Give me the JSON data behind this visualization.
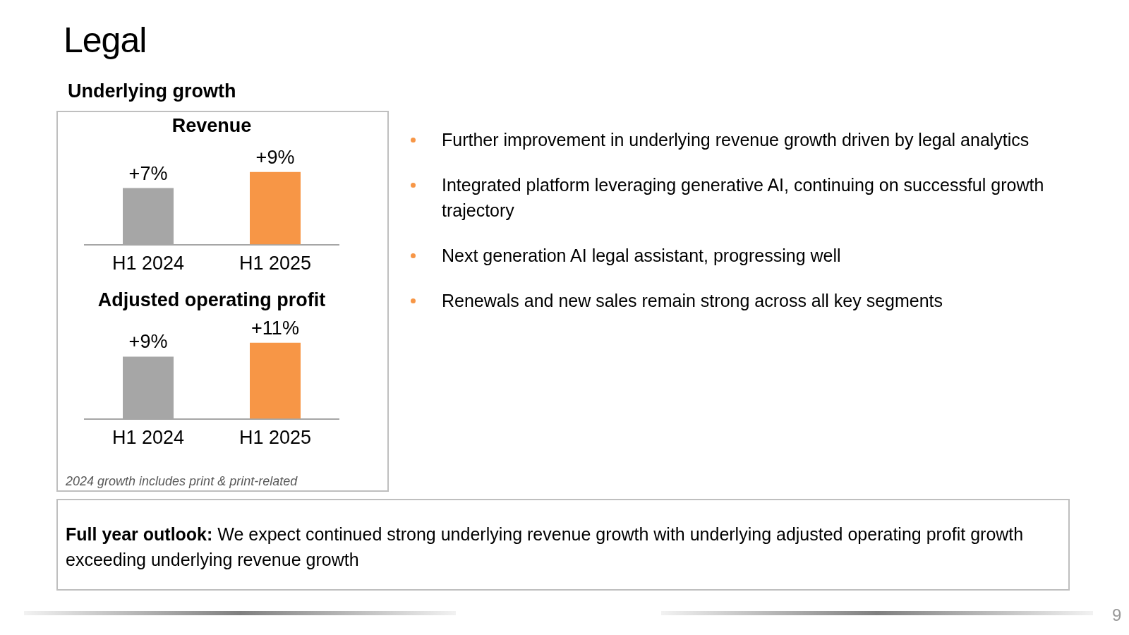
{
  "chart_data": [
    {
      "type": "other",
      "title": "Legal",
      "subtitle": "Underlying growth",
      "annotations": [
        "Further improvement in underlying revenue growth driven by legal analytics",
        "Integrated platform leveraging generative AI, continuing on successful growth trajectory",
        "Next generation AI legal assistant, progressing well",
        "Renewals and new sales remain strong across all key segments",
        "Full year outlook:",
        "We expect continued strong underlying revenue growth with underlying adjusted operating profit growth exceeding underlying revenue growth",
        "9"
      ]
    },
    {
      "type": "bar",
      "title": "Revenue",
      "categories": [
        "H1 2024",
        "H1 2025"
      ],
      "values": [
        7,
        9
      ],
      "value_labels": [
        "+7%",
        "+9%"
      ],
      "colors": [
        "#a6a6a6",
        "#f79646"
      ],
      "tick_labels": "x",
      "grid": false,
      "legend": false
    },
    {
      "type": "bar",
      "title": "Adjusted operating profit",
      "categories": [
        "H1 2024",
        "H1 2025"
      ],
      "values": [
        9,
        11
      ],
      "value_labels": [
        "+9%",
        "+11%"
      ],
      "colors": [
        "#a6a6a6",
        "#f79646"
      ],
      "tick_labels": "x",
      "grid": false,
      "legend": false,
      "annotations": [
        "2024 growth includes print & print-related"
      ]
    }
  ]
}
